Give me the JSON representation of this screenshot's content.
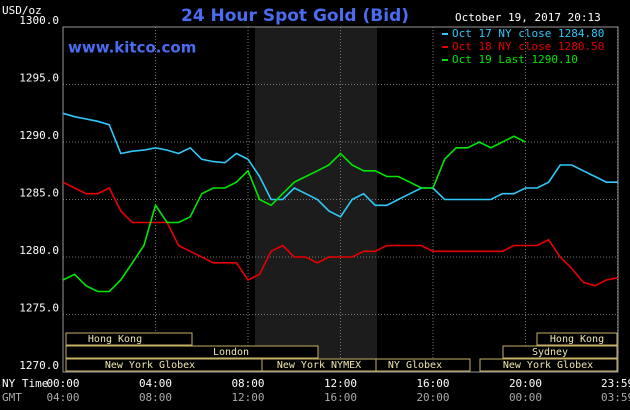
{
  "chart_data": {
    "type": "line",
    "title": "24 Hour Spot Gold (Bid)",
    "website": "www.kitco.com",
    "timestamp": "October 19, 2017 20:13",
    "y_unit": "USD/oz",
    "x_axis_label": "NY Time",
    "x2_axis_label": "GMT",
    "x": [
      0,
      0.5,
      1,
      1.5,
      2,
      2.5,
      3,
      3.5,
      4,
      4.5,
      5,
      5.5,
      6,
      6.5,
      7,
      7.5,
      8,
      8.5,
      9,
      9.5,
      10,
      10.5,
      11,
      11.5,
      12,
      12.5,
      13,
      13.5,
      14,
      14.5,
      15,
      15.5,
      16,
      16.5,
      17,
      17.5,
      18,
      18.5,
      19,
      19.5,
      20,
      20.5,
      21,
      21.5,
      22,
      22.5,
      23,
      23.5,
      24
    ],
    "series": [
      {
        "name": "Oct 17 NY close 1284.80",
        "color": "#30c8f8",
        "values": [
          1292.5,
          1292.2,
          1292,
          1291.8,
          1291.5,
          1289,
          1289.2,
          1289.3,
          1289.5,
          1289.3,
          1289,
          1289.5,
          1288.5,
          1288.3,
          1288.2,
          1289,
          1288.5,
          1287,
          1285,
          1285,
          1286,
          1285.5,
          1285,
          1284,
          1283.5,
          1285,
          1285.5,
          1284.5,
          1284.5,
          1285,
          1285.5,
          1286,
          1286,
          1285,
          1285,
          1285,
          1285,
          1285,
          1285.5,
          1285.5,
          1286,
          1286,
          1286.5,
          1288,
          1288,
          1287.5,
          1287,
          1286.5,
          1286.5
        ]
      },
      {
        "name": "Oct 18 NY close 1280.50",
        "color": "#e80000",
        "values": [
          1286.5,
          1286,
          1285.5,
          1285.5,
          1286,
          1284,
          1283,
          1283,
          1283,
          1283,
          1281,
          1280.5,
          1280,
          1279.5,
          1279.5,
          1279.5,
          1278,
          1278.5,
          1280.5,
          1281,
          1280,
          1280,
          1279.5,
          1280,
          1280,
          1280,
          1280.5,
          1280.5,
          1281,
          1281,
          1281,
          1281,
          1280.5,
          1280.5,
          1280.5,
          1280.5,
          1280.5,
          1280.5,
          1280.5,
          1281,
          1281,
          1281,
          1281.5,
          1280,
          1279,
          1277.8,
          1277.5,
          1278,
          1278.2
        ]
      },
      {
        "name": "Oct 19 Last 1290.10",
        "color": "#00e800",
        "values": [
          1278,
          1278.5,
          1277.5,
          1277,
          1277,
          1278,
          1279.5,
          1281,
          1284.5,
          1283,
          1283,
          1283.5,
          1285.5,
          1286,
          1286,
          1286.5,
          1287.5,
          1285,
          1284.5,
          1285.5,
          1286.5,
          1287,
          1287.5,
          1288,
          1289,
          1288,
          1287.5,
          1287.5,
          1287,
          1287,
          1286.5,
          1286,
          1286,
          1288.5,
          1289.5,
          1289.5,
          1290,
          1289.5,
          1290,
          1290.5,
          1290,
          null,
          null,
          null,
          null,
          null,
          null,
          null,
          null
        ]
      }
    ],
    "xlim": [
      0,
      24
    ],
    "xticks": [
      {
        "value": 0,
        "label": "00:00"
      },
      {
        "value": 4,
        "label": "04:00"
      },
      {
        "value": 8,
        "label": "08:00"
      },
      {
        "value": 12,
        "label": "12:00"
      },
      {
        "value": 16,
        "label": "16:00"
      },
      {
        "value": 20,
        "label": "20:00"
      },
      {
        "value": 23.98,
        "label": "23:59"
      }
    ],
    "gmt_labels": [
      "04:00",
      "08:00",
      "12:00",
      "16:00",
      "20:00",
      "00:00",
      "03:59"
    ],
    "ylim": [
      1270,
      1300
    ],
    "yticks": [
      {
        "value": 1270,
        "label": "1270.0"
      },
      {
        "value": 1275,
        "label": "1275.0"
      },
      {
        "value": 1280,
        "label": "1280.0"
      },
      {
        "value": 1285,
        "label": "1285.0"
      },
      {
        "value": 1290,
        "label": "1290.0"
      },
      {
        "value": 1295,
        "label": "1295.0"
      },
      {
        "value": 1300,
        "label": "1300.0"
      }
    ],
    "grid": true,
    "sessions": [
      "Hong Kong",
      "London",
      "New York Globex",
      "New York NYMEX",
      "NY Globex",
      "Hong Kong",
      "Sydney",
      "New York Globex"
    ]
  }
}
